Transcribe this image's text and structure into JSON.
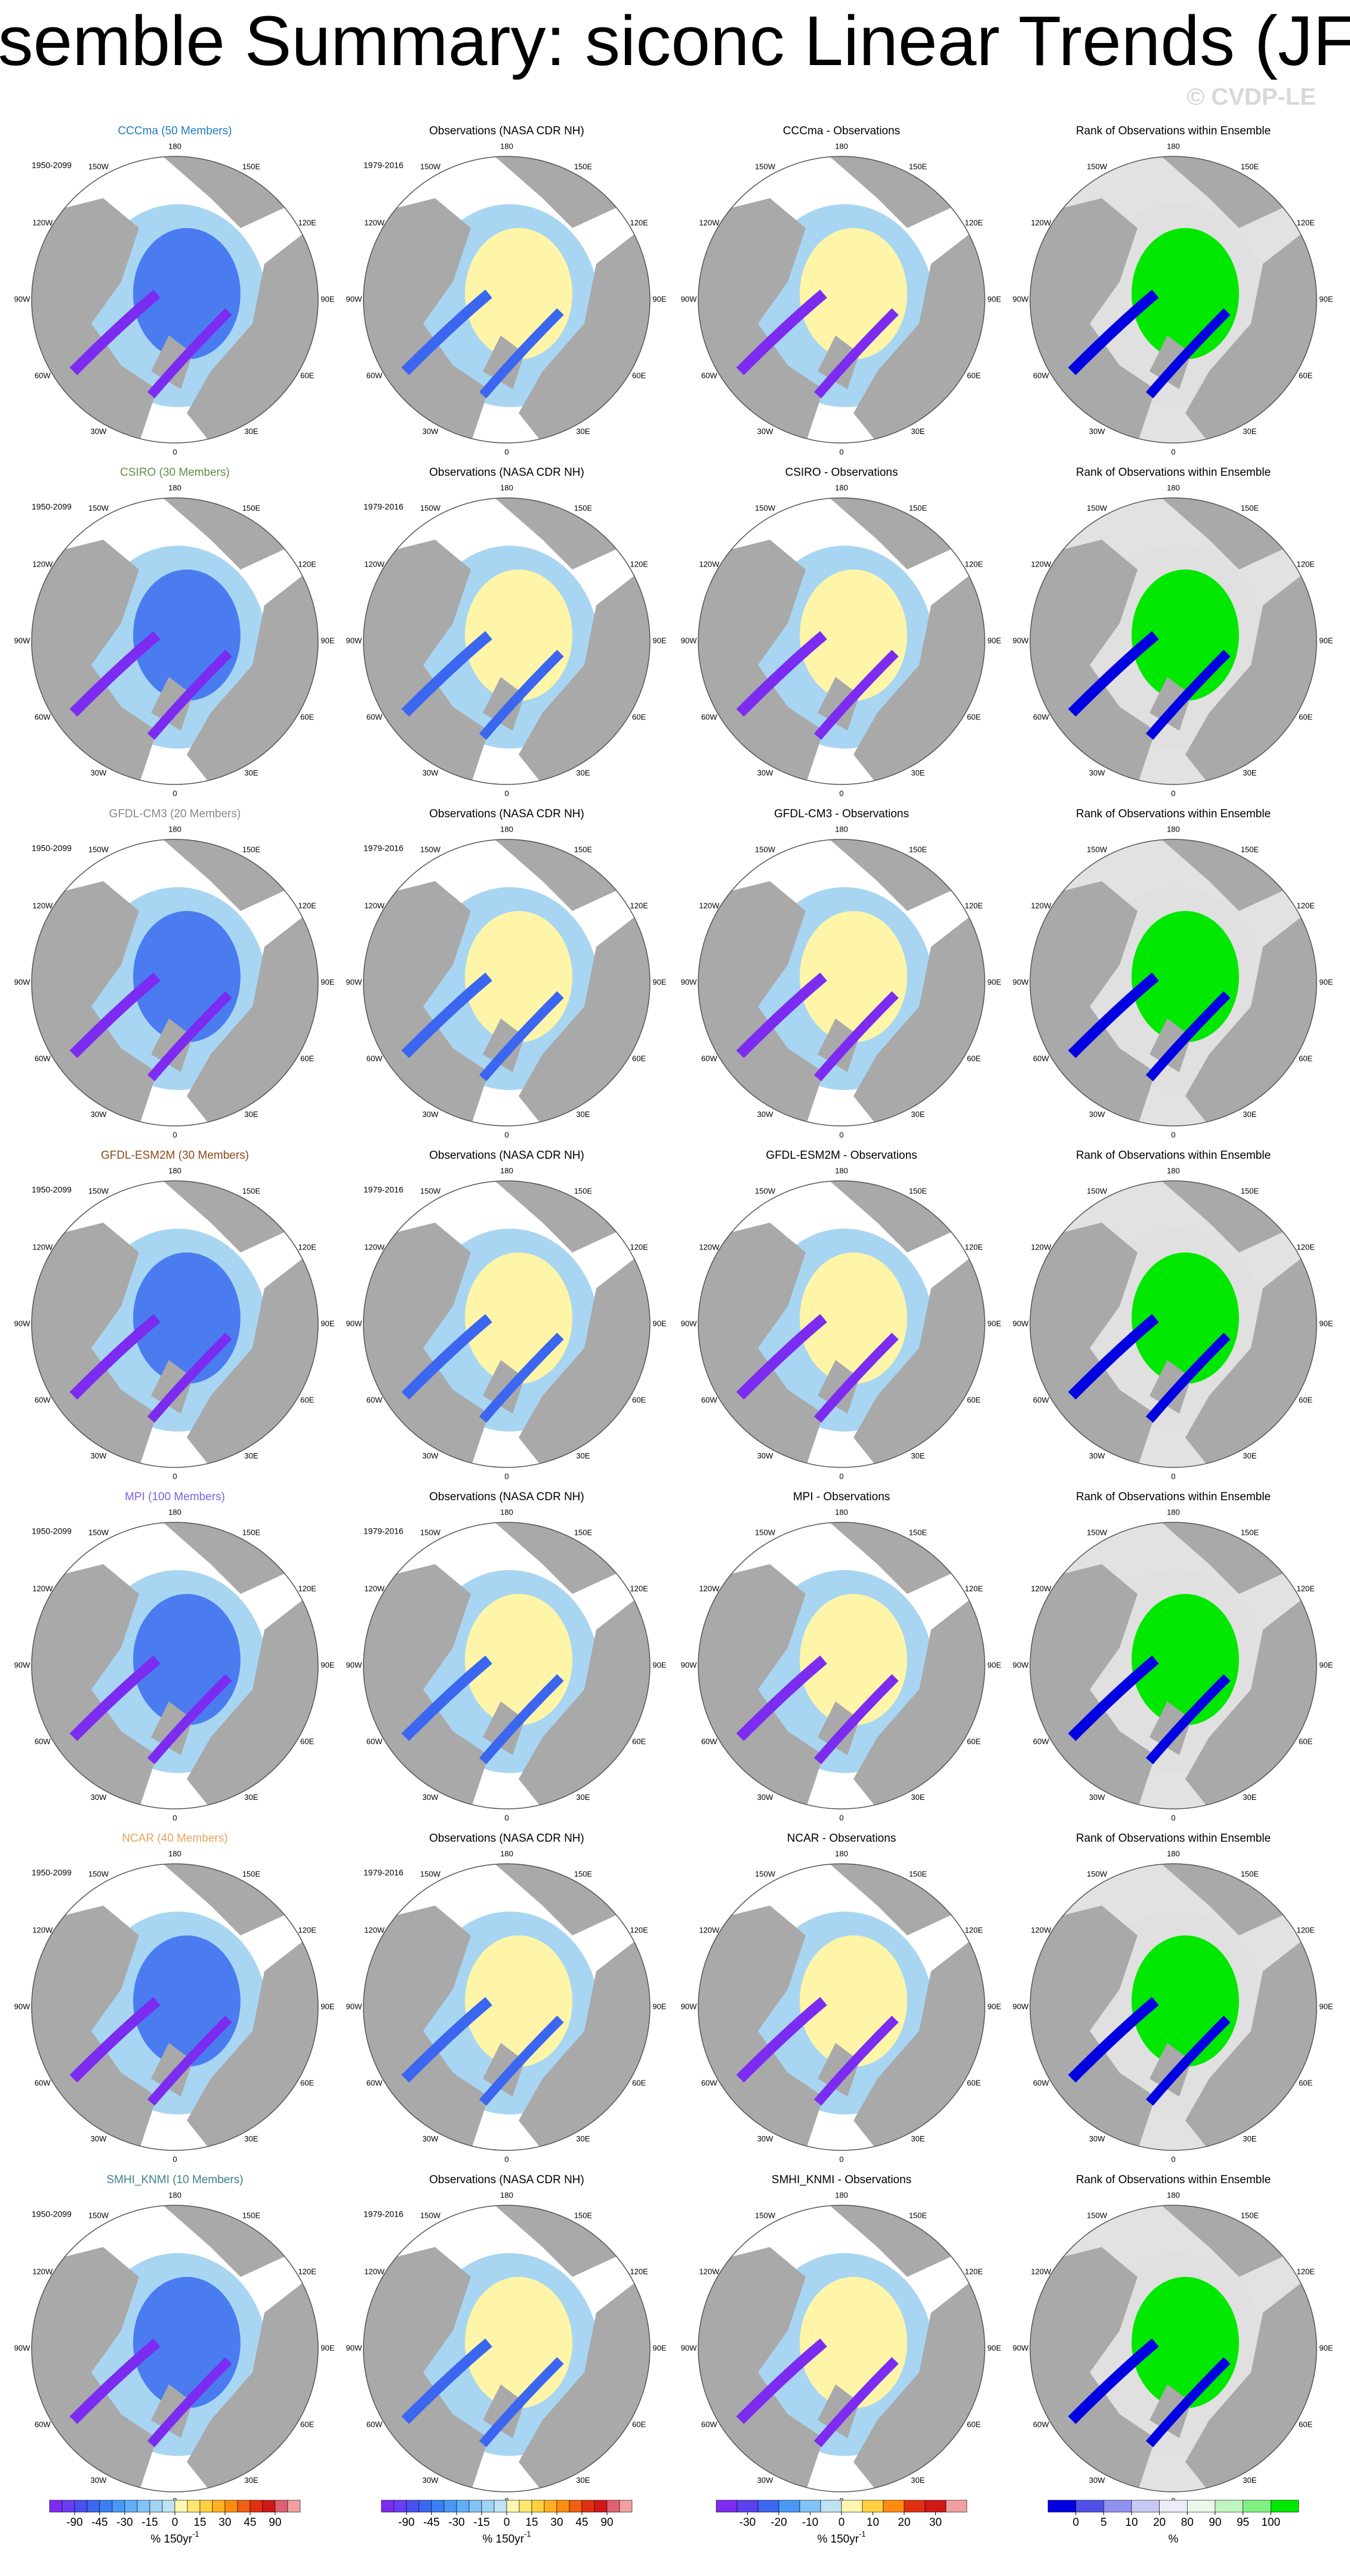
{
  "title": "Ensemble Summary: siconc Linear Trends (JFM)",
  "watermark": "© CVDP-LE",
  "lon_labels": [
    "180",
    "150E",
    "120E",
    "90E",
    "60E",
    "30E",
    "0",
    "30W",
    "60W",
    "90W",
    "120W",
    "150W"
  ],
  "rows": [
    {
      "model_title": "CCCma (50 Members)",
      "model_color": "#1f7ac0",
      "model_period": "1950-2099",
      "obs_title": "Observations (NASA CDR NH)",
      "obs_period": "1979-2016",
      "diff_title": "CCCma - Observations",
      "rank_title": "Rank of Observations within Ensemble"
    },
    {
      "model_title": "CSIRO (30 Members)",
      "model_color": "#5f8f45",
      "model_period": "1950-2099",
      "obs_title": "Observations (NASA CDR NH)",
      "obs_period": "1979-2016",
      "diff_title": "CSIRO - Observations",
      "rank_title": "Rank of Observations within Ensemble"
    },
    {
      "model_title": "GFDL-CM3 (20 Members)",
      "model_color": "#888888",
      "model_period": "1950-2099",
      "obs_title": "Observations (NASA CDR NH)",
      "obs_period": "1979-2016",
      "diff_title": "GFDL-CM3 - Observations",
      "rank_title": "Rank of Observations within Ensemble"
    },
    {
      "model_title": "GFDL-ESM2M (30 Members)",
      "model_color": "#8b4a1a",
      "model_period": "1950-2099",
      "obs_title": "Observations (NASA CDR NH)",
      "obs_period": "1979-2016",
      "diff_title": "GFDL-ESM2M - Observations",
      "rank_title": "Rank of Observations within Ensemble"
    },
    {
      "model_title": "MPI (100 Members)",
      "model_color": "#7b62e0",
      "model_period": "1950-2099",
      "obs_title": "Observations (NASA CDR NH)",
      "obs_period": "1979-2016",
      "diff_title": "MPI - Observations",
      "rank_title": "Rank of Observations within Ensemble"
    },
    {
      "model_title": "NCAR (40 Members)",
      "model_color": "#e8a55a",
      "model_period": "1950-2099",
      "obs_title": "Observations (NASA CDR NH)",
      "obs_period": "1979-2016",
      "diff_title": "NCAR - Observations",
      "rank_title": "Rank of Observations within Ensemble"
    },
    {
      "model_title": "SMHI_KNMI (10 Members)",
      "model_color": "#3c7f8c",
      "model_period": "1950-2099",
      "obs_title": "Observations (NASA CDR NH)",
      "obs_period": "1979-2016",
      "diff_title": "SMHI_KNMI - Observations",
      "rank_title": "Rank of Observations within Ensemble"
    }
  ],
  "colorbars": [
    {
      "ticks": [
        "-90",
        "-45",
        "-30",
        "-15",
        "0",
        "15",
        "30",
        "45",
        "90"
      ],
      "unit": "% 150yr",
      "unit_sup": "-1",
      "colors": [
        "#7b2cf0",
        "#6a3cf5",
        "#4a50f0",
        "#3a66f0",
        "#3a80f5",
        "#4a98f5",
        "#60aef5",
        "#80c4f5",
        "#a0d4f5",
        "#c0e2f5",
        "#fff7b0",
        "#ffe870",
        "#ffd040",
        "#ffb020",
        "#ff8c10",
        "#f06010",
        "#e03010",
        "#d01818",
        "#e06070",
        "#f0a0a0"
      ]
    },
    {
      "ticks": [
        "-90",
        "-45",
        "-30",
        "-15",
        "0",
        "15",
        "30",
        "45",
        "90"
      ],
      "unit": "% 150yr",
      "unit_sup": "-1",
      "colors": [
        "#7b2cf0",
        "#6a3cf5",
        "#4a50f0",
        "#3a66f0",
        "#3a80f5",
        "#4a98f5",
        "#60aef5",
        "#80c4f5",
        "#a0d4f5",
        "#c0e2f5",
        "#fff7b0",
        "#ffe870",
        "#ffd040",
        "#ffb020",
        "#ff8c10",
        "#f06010",
        "#e03010",
        "#d01818",
        "#e06070",
        "#f0a0a0"
      ]
    },
    {
      "ticks": [
        "-30",
        "-20",
        "-10",
        "0",
        "10",
        "20",
        "30"
      ],
      "unit": "% 150yr",
      "unit_sup": "-1",
      "colors": [
        "#7b2cf0",
        "#5a40f0",
        "#3a66f0",
        "#4a98f5",
        "#80c4f5",
        "#c0e2f5",
        "#fff7b0",
        "#ffd040",
        "#ff8c10",
        "#e03010",
        "#d01818",
        "#f0a0a0"
      ]
    },
    {
      "ticks": [
        "0",
        "5",
        "10",
        "20",
        "80",
        "90",
        "95",
        "100"
      ],
      "unit": "%",
      "unit_sup": "",
      "colors": [
        "#0000e0",
        "#5050e8",
        "#9090f0",
        "#c8c8f5",
        "#ececf8",
        "#ecf8ec",
        "#c0f5c0",
        "#80f080",
        "#00e800"
      ]
    }
  ]
}
